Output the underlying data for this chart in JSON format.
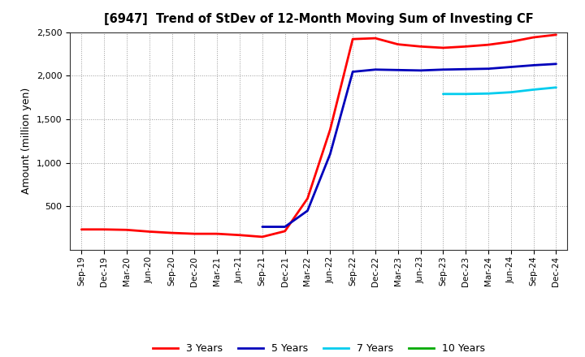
{
  "title": "[6947]  Trend of StDev of 12-Month Moving Sum of Investing CF",
  "ylabel": "Amount (million yen)",
  "background_color": "#ffffff",
  "plot_bg_color": "#ffffff",
  "grid_color": "#999999",
  "ylim": [
    0,
    2500
  ],
  "yticks": [
    500,
    1000,
    1500,
    2000,
    2500
  ],
  "xtick_labels": [
    "Sep-19",
    "Dec-19",
    "Mar-20",
    "Jun-20",
    "Sep-20",
    "Dec-20",
    "Mar-21",
    "Jun-21",
    "Sep-21",
    "Dec-21",
    "Mar-22",
    "Jun-22",
    "Sep-22",
    "Dec-22",
    "Mar-23",
    "Jun-23",
    "Sep-23",
    "Dec-23",
    "Mar-24",
    "Jun-24",
    "Sep-24",
    "Dec-24"
  ],
  "series": {
    "3yr": {
      "color": "#ff0000",
      "label": "3 Years",
      "x": [
        0,
        1,
        2,
        3,
        4,
        5,
        6,
        7,
        8,
        9,
        10,
        11,
        12,
        13,
        14,
        15,
        16,
        17,
        18,
        19,
        20,
        21
      ],
      "y": [
        235,
        235,
        230,
        210,
        195,
        185,
        185,
        170,
        150,
        215,
        590,
        1380,
        2420,
        2430,
        2360,
        2335,
        2320,
        2335,
        2355,
        2390,
        2440,
        2470
      ]
    },
    "5yr": {
      "color": "#0000bb",
      "label": "5 Years",
      "x": [
        8,
        9,
        10,
        11,
        12,
        13,
        14,
        15,
        16,
        17,
        18,
        19,
        20,
        21
      ],
      "y": [
        265,
        265,
        450,
        1100,
        2045,
        2070,
        2065,
        2060,
        2070,
        2075,
        2080,
        2100,
        2120,
        2135
      ]
    },
    "7yr": {
      "color": "#00ccee",
      "label": "7 Years",
      "x": [
        16,
        17,
        18,
        19,
        20,
        21
      ],
      "y": [
        1790,
        1790,
        1795,
        1810,
        1840,
        1865
      ]
    },
    "10yr": {
      "color": "#00aa00",
      "label": "10 Years",
      "x": [],
      "y": []
    }
  },
  "legend_labels": [
    "3 Years",
    "5 Years",
    "7 Years",
    "10 Years"
  ],
  "legend_colors": [
    "#ff0000",
    "#0000bb",
    "#00ccee",
    "#00aa00"
  ]
}
